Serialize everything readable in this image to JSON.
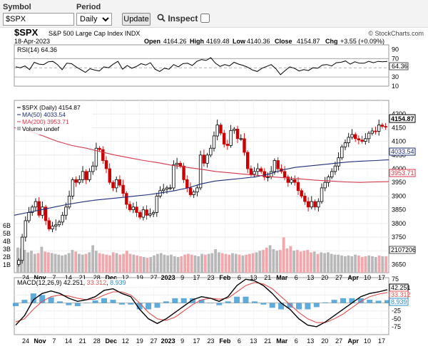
{
  "toolbar": {
    "symbol_label": "Symbol",
    "symbol_value": "$SPX",
    "period_label": "Period",
    "period_value": "Daily",
    "update_label": "Update",
    "inspect_label": "Inspect"
  },
  "header": {
    "symbol": "$SPX",
    "name": "S&P 500 Large Cap Index  INDX",
    "date": "18-Apr-2023",
    "watermark": "© StockCharts.com",
    "open_label": "Open",
    "open": "4164.26",
    "high_label": "High",
    "high": "4169.48",
    "low_label": "Low",
    "low": "4140.36",
    "close_label": "Close",
    "close": "4154.87",
    "chg_label": "Chg",
    "chg": "+3.55 (+0.09%)"
  },
  "chart_data": [
    {
      "type": "line",
      "title": "RSI(14) 64.36",
      "ylim": [
        10,
        100
      ],
      "ticks": [
        10,
        30,
        50,
        70,
        90
      ],
      "reference_lines": [
        30,
        50,
        70
      ],
      "last_label": "64.36",
      "values": [
        52,
        50,
        54,
        46,
        62,
        58,
        57,
        63,
        64,
        57,
        46,
        60,
        59,
        52,
        46,
        40,
        48,
        45,
        43,
        52,
        50,
        58,
        64,
        47,
        55,
        49,
        53,
        59,
        56,
        61,
        47,
        42,
        49,
        47,
        57,
        52,
        59,
        60,
        55,
        64,
        68,
        66,
        72,
        60,
        53,
        57,
        54,
        62,
        58,
        55,
        51,
        45,
        42,
        49,
        53,
        57,
        48,
        35,
        44,
        52,
        49,
        43,
        46,
        44,
        50,
        49,
        56,
        57,
        54,
        61,
        62,
        65,
        58,
        63,
        60,
        60,
        64,
        61,
        64,
        63,
        64
      ]
    },
    {
      "type": "line",
      "title": "$SPX (Daily) 4154.87",
      "ylim": [
        3620,
        4250
      ],
      "ticks": [
        3650,
        3700,
        3750,
        3800,
        3850,
        3900,
        3950,
        4000,
        4050,
        4100,
        4150,
        4200
      ],
      "legend": [
        "$SPX (Daily) 4154.87",
        "MA(50) 4033.54",
        "MA(200) 3953.71",
        "Volume undef"
      ],
      "series": [
        {
          "name": "$SPX",
          "last_label": "4154.87",
          "values": [
            3665,
            3750,
            3810,
            3840,
            3860,
            3880,
            3830,
            3860,
            3810,
            3780,
            3790,
            3795,
            3805,
            3830,
            3860,
            3900,
            3960,
            3950,
            3960,
            3990,
            3960,
            3990,
            4010,
            4075,
            4070,
            4030,
            4000,
            3950,
            3930,
            3960,
            3940,
            3910,
            3870,
            3850,
            3860,
            3840,
            3823,
            3850,
            3830,
            3835,
            3840,
            3900,
            3920,
            3925,
            3930,
            3930,
            4015,
            4020,
            4010,
            3960,
            3930,
            3905,
            3915,
            3930,
            4050,
            4020,
            4050,
            4075,
            4120,
            4160,
            4130,
            4090,
            4085,
            4140,
            4145,
            4110,
            4110,
            4060,
            4000,
            3980,
            3990,
            4000,
            3990,
            3970,
            3970,
            3990,
            4030,
            4000,
            3990,
            3970,
            3950,
            3960,
            3950,
            3920,
            3900,
            3880,
            3860,
            3880,
            3860,
            3880,
            3930,
            3950,
            3970,
            3990,
            4010,
            4040,
            4080,
            4095,
            4115,
            4125,
            4110,
            4105,
            4100,
            4110,
            4130,
            4138,
            4137,
            4160,
            4155,
            4154.87
          ]
        },
        {
          "name": "MA(50)",
          "last_label": "4033.54",
          "values": [
            3830,
            3840,
            3850,
            3860,
            3870,
            3878,
            3885,
            3890,
            3895,
            3900,
            3905,
            3912,
            3920,
            3930,
            3945,
            3955,
            3960,
            3965,
            3970,
            3980,
            3995,
            4005,
            4010,
            4015,
            4020,
            4025,
            4028,
            4030,
            4033
          ]
        },
        {
          "name": "MA(200)",
          "last_label": "3953.71",
          "values": [
            4150,
            4138,
            4120,
            4100,
            4085,
            4075,
            4062,
            4050,
            4040,
            4030,
            4022,
            4012,
            4005,
            3998,
            3990,
            3985,
            3980,
            3975,
            3970,
            3966,
            3962,
            3958,
            3955,
            3952,
            3950,
            3952,
            3953
          ]
        }
      ],
      "volume_axis": {
        "ticks": [
          "1B",
          "2B",
          "3B",
          "4B",
          "5B",
          "6B"
        ],
        "last_label": "2107206"
      },
      "volume": [
        3.2,
        3.1,
        2.9,
        2.6,
        2.8,
        2.4,
        2.5,
        3.3,
        2.7,
        2.6,
        2.5,
        2.4,
        2.3,
        2.2,
        2.3,
        2.5,
        2.9,
        2.7,
        2.4,
        2.3,
        2.4,
        2.6,
        3.5,
        2.8,
        2.5,
        2.4,
        2.3,
        2.2,
        2.6,
        2.5,
        2.3,
        2.4,
        2.8,
        2.4,
        2.3,
        2.2,
        2.1,
        2.0,
        1.9,
        2.0,
        2.2,
        2.4,
        2.5,
        2.3,
        2.2,
        2.3,
        2.1,
        2.0,
        2.1,
        2.3,
        2.4,
        2.3,
        2.2,
        2.1,
        2.4,
        2.3,
        2.4,
        2.5,
        3.0,
        2.6,
        2.5,
        2.4,
        2.3,
        2.5,
        2.4,
        2.3,
        2.2,
        2.3,
        2.4,
        2.5,
        2.6,
        2.8,
        2.9,
        3.2,
        3.5,
        3.0,
        2.8,
        2.9,
        4.5,
        3.1,
        3.4,
        2.8,
        2.9,
        2.7,
        2.8,
        2.9,
        2.6,
        2.7,
        2.4,
        2.6,
        2.5,
        2.6,
        2.4,
        2.3,
        2.3,
        2.2,
        2.1,
        2.2,
        2.1,
        2.3,
        2.2,
        2.0,
        2.1,
        2.2,
        2.1,
        2.0,
        2.2,
        2.1,
        2.1
      ]
    },
    {
      "type": "line",
      "title": "MACD(12,26,9) 42.251, 33.312, 8.939",
      "ylim": [
        -100,
        80
      ],
      "ticks": [
        -75,
        -50,
        -25,
        0,
        25,
        50,
        75
      ],
      "series": [
        {
          "name": "MACD",
          "label": "MACD(12,26,9)",
          "value": "42.251",
          "values": [
            -70,
            -40,
            10,
            30,
            38,
            30,
            15,
            5,
            10,
            20,
            40,
            45,
            30,
            20,
            -20,
            -50,
            -65,
            -50,
            -30,
            -10,
            10,
            20,
            15,
            5,
            20,
            55,
            75,
            70,
            55,
            30,
            0,
            -20,
            -50,
            -70,
            -75,
            -60,
            -40,
            -20,
            0,
            20,
            30,
            35,
            42
          ]
        },
        {
          "name": "Signal",
          "value": "33.312",
          "values": [
            -60,
            -50,
            -20,
            5,
            20,
            25,
            22,
            15,
            10,
            12,
            25,
            35,
            35,
            25,
            0,
            -30,
            -50,
            -55,
            -45,
            -25,
            -5,
            10,
            15,
            12,
            15,
            35,
            55,
            65,
            60,
            45,
            20,
            -5,
            -30,
            -50,
            -62,
            -62,
            -50,
            -35,
            -15,
            5,
            20,
            28,
            33
          ]
        },
        {
          "name": "Histogram",
          "value": "8.939"
        }
      ],
      "last_labels": [
        "42.251",
        "33.312",
        "8.939"
      ]
    }
  ],
  "x_axis": {
    "labels": [
      "24",
      "Nov",
      "7",
      "14",
      "21",
      "28",
      "Dec",
      "12",
      "19",
      "27",
      "2023",
      "9",
      "17",
      "23",
      "Feb",
      "6",
      "13",
      "21",
      "Mar",
      "6",
      "13",
      "20",
      "27",
      "Apr",
      "10",
      "17"
    ],
    "bold": [
      "Nov",
      "Dec",
      "2023",
      "Feb",
      "Mar",
      "Apr"
    ]
  },
  "colors": {
    "up": "#000000",
    "down": "#cc0000",
    "ma50": "#1f2c7a",
    "ma200": "#d4374a",
    "volume_up": "#b8b8b8",
    "volume_down": "#f0a8ac",
    "macd_signal": "#e05050",
    "histogram": "#2a8fd0"
  }
}
